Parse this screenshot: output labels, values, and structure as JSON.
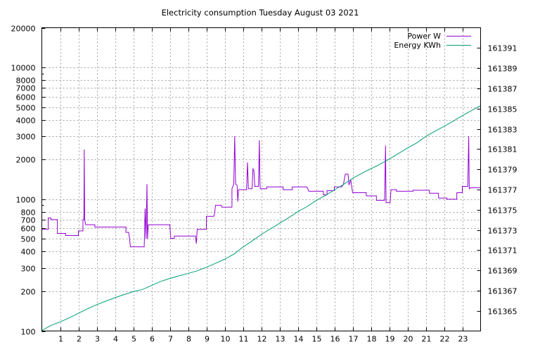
{
  "chart_data": {
    "type": "line",
    "title": "Electricity consumption Tuesday August 03 2021",
    "xlabel": "",
    "ylabel": "",
    "x_ticks": [
      1,
      2,
      3,
      4,
      5,
      6,
      7,
      8,
      9,
      10,
      11,
      12,
      13,
      14,
      15,
      16,
      17,
      18,
      19,
      20,
      21,
      22,
      23
    ],
    "xlim": [
      0,
      24
    ],
    "y_scale": "log",
    "ylim": [
      100,
      20000
    ],
    "y_ticks": [
      100,
      200,
      300,
      400,
      500,
      600,
      700,
      800,
      1000,
      2000,
      3000,
      4000,
      5000,
      6000,
      7000,
      8000,
      10000,
      20000
    ],
    "y2lim": [
      161363,
      161393
    ],
    "y2_ticks": [
      161365,
      161367,
      161369,
      161371,
      161373,
      161375,
      161377,
      161379,
      161381,
      161383,
      161385,
      161387,
      161389,
      161391
    ],
    "grid": true,
    "legend_position": "top-right",
    "series": [
      {
        "name": "Power W",
        "color": "#9400d3",
        "axis": "left",
        "points": [
          [
            0,
            590
          ],
          [
            0.35,
            590
          ],
          [
            0.35,
            720
          ],
          [
            0.5,
            720
          ],
          [
            0.5,
            700
          ],
          [
            0.85,
            700
          ],
          [
            0.85,
            550
          ],
          [
            1.3,
            550
          ],
          [
            1.3,
            530
          ],
          [
            2.0,
            530
          ],
          [
            2.0,
            575
          ],
          [
            2.25,
            575
          ],
          [
            2.25,
            700
          ],
          [
            2.3,
            700
          ],
          [
            2.32,
            2380
          ],
          [
            2.34,
            700
          ],
          [
            2.4,
            640
          ],
          [
            2.9,
            640
          ],
          [
            2.9,
            615
          ],
          [
            4.6,
            615
          ],
          [
            4.6,
            560
          ],
          [
            4.75,
            560
          ],
          [
            4.8,
            500
          ],
          [
            4.85,
            435
          ],
          [
            5.6,
            435
          ],
          [
            5.65,
            850
          ],
          [
            5.7,
            500
          ],
          [
            5.75,
            1300
          ],
          [
            5.78,
            500
          ],
          [
            5.82,
            640
          ],
          [
            7.0,
            640
          ],
          [
            7.05,
            505
          ],
          [
            7.25,
            505
          ],
          [
            7.25,
            525
          ],
          [
            8.4,
            525
          ],
          [
            8.45,
            460
          ],
          [
            8.5,
            590
          ],
          [
            9.0,
            590
          ],
          [
            9.0,
            740
          ],
          [
            9.4,
            740
          ],
          [
            9.45,
            780
          ],
          [
            9.5,
            900
          ],
          [
            9.8,
            900
          ],
          [
            9.85,
            870
          ],
          [
            10.4,
            870
          ],
          [
            10.4,
            1200
          ],
          [
            10.5,
            1300
          ],
          [
            10.55,
            3000
          ],
          [
            10.6,
            1300
          ],
          [
            10.68,
            1280
          ],
          [
            10.72,
            960
          ],
          [
            10.76,
            1180
          ],
          [
            11.2,
            1180
          ],
          [
            11.25,
            1900
          ],
          [
            11.3,
            1200
          ],
          [
            11.5,
            1200
          ],
          [
            11.55,
            1700
          ],
          [
            11.6,
            1650
          ],
          [
            11.65,
            1250
          ],
          [
            11.85,
            1250
          ],
          [
            11.9,
            2800
          ],
          [
            11.93,
            1350
          ],
          [
            11.95,
            1200
          ],
          [
            12.3,
            1200
          ],
          [
            12.3,
            1240
          ],
          [
            13.2,
            1240
          ],
          [
            13.2,
            1180
          ],
          [
            13.7,
            1180
          ],
          [
            13.7,
            1240
          ],
          [
            14.5,
            1240
          ],
          [
            14.6,
            1150
          ],
          [
            15.4,
            1150
          ],
          [
            15.4,
            1080
          ],
          [
            15.6,
            1080
          ],
          [
            15.6,
            1160
          ],
          [
            16.0,
            1160
          ],
          [
            16.0,
            1240
          ],
          [
            16.4,
            1240
          ],
          [
            16.5,
            1300
          ],
          [
            16.6,
            1550
          ],
          [
            16.75,
            1550
          ],
          [
            16.8,
            1280
          ],
          [
            16.9,
            1400
          ],
          [
            17.0,
            1120
          ],
          [
            17.75,
            1120
          ],
          [
            17.75,
            1060
          ],
          [
            18.3,
            1060
          ],
          [
            18.3,
            980
          ],
          [
            18.75,
            980
          ],
          [
            18.8,
            2550
          ],
          [
            18.83,
            940
          ],
          [
            19.05,
            940
          ],
          [
            19.1,
            1180
          ],
          [
            19.4,
            1180
          ],
          [
            19.4,
            1150
          ],
          [
            20.3,
            1150
          ],
          [
            20.3,
            1170
          ],
          [
            21.2,
            1170
          ],
          [
            21.2,
            1110
          ],
          [
            21.7,
            1110
          ],
          [
            21.7,
            1020
          ],
          [
            22.15,
            1020
          ],
          [
            22.15,
            1000
          ],
          [
            22.7,
            1000
          ],
          [
            22.7,
            1120
          ],
          [
            23.0,
            1120
          ],
          [
            23.0,
            1250
          ],
          [
            23.3,
            1250
          ],
          [
            23.35,
            3000
          ],
          [
            23.38,
            1200
          ],
          [
            23.45,
            1220
          ],
          [
            24,
            1220
          ]
        ]
      },
      {
        "name": "Energy KWh",
        "color": "#009e73",
        "axis": "right",
        "points": [
          [
            0,
            161363.05
          ],
          [
            0.5,
            161363.55
          ],
          [
            1.0,
            161363.9
          ],
          [
            1.5,
            161364.3
          ],
          [
            2.0,
            161364.75
          ],
          [
            2.5,
            161365.2
          ],
          [
            3.0,
            161365.6
          ],
          [
            3.5,
            161365.95
          ],
          [
            4.0,
            161366.3
          ],
          [
            4.5,
            161366.6
          ],
          [
            5.0,
            161366.9
          ],
          [
            5.5,
            161367.1
          ],
          [
            6.0,
            161367.5
          ],
          [
            6.5,
            161367.9
          ],
          [
            7.0,
            161368.2
          ],
          [
            7.5,
            161368.45
          ],
          [
            8.0,
            161368.7
          ],
          [
            8.5,
            161368.95
          ],
          [
            9.0,
            161369.3
          ],
          [
            9.5,
            161369.7
          ],
          [
            10.0,
            161370.1
          ],
          [
            10.5,
            161370.6
          ],
          [
            11.0,
            161371.3
          ],
          [
            11.5,
            161371.9
          ],
          [
            12.0,
            161372.55
          ],
          [
            12.5,
            161373.1
          ],
          [
            13.0,
            161373.65
          ],
          [
            13.5,
            161374.2
          ],
          [
            14.0,
            161374.8
          ],
          [
            14.5,
            161375.3
          ],
          [
            15.0,
            161375.9
          ],
          [
            15.5,
            161376.4
          ],
          [
            16.0,
            161376.95
          ],
          [
            16.5,
            161377.5
          ],
          [
            17.0,
            161378.1
          ],
          [
            17.5,
            161378.6
          ],
          [
            18.0,
            161379.05
          ],
          [
            18.5,
            161379.5
          ],
          [
            19.0,
            161380.0
          ],
          [
            19.5,
            161380.55
          ],
          [
            20.0,
            161381.1
          ],
          [
            20.5,
            161381.6
          ],
          [
            21.0,
            161382.25
          ],
          [
            21.5,
            161382.75
          ],
          [
            22.0,
            161383.25
          ],
          [
            22.5,
            161383.75
          ],
          [
            23.0,
            161384.3
          ],
          [
            23.5,
            161384.8
          ],
          [
            24.0,
            161385.3
          ]
        ]
      }
    ]
  }
}
